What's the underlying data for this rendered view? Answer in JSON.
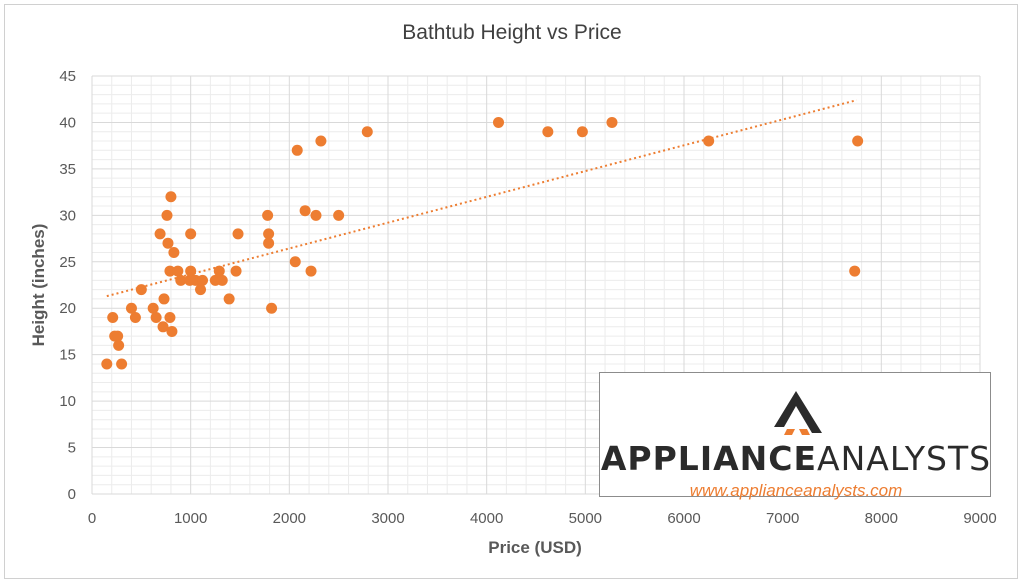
{
  "chart_data": {
    "type": "scatter",
    "title": "Bathtub Height vs Price",
    "xlabel": "Price (USD)",
    "ylabel": "Height (inches)",
    "xlim": [
      0,
      9000
    ],
    "ylim": [
      0,
      45
    ],
    "xticks": [
      0,
      1000,
      2000,
      3000,
      4000,
      5000,
      6000,
      7000,
      8000,
      9000
    ],
    "yticks": [
      0,
      5,
      10,
      15,
      20,
      25,
      30,
      35,
      40,
      45
    ],
    "grid": true,
    "marker_color": "#ed7d31",
    "trendline": {
      "type": "linear",
      "style": "dotted",
      "from": [
        150,
        21.3
      ],
      "to": [
        7750,
        42.4
      ]
    },
    "points": [
      [
        150,
        14
      ],
      [
        210,
        19
      ],
      [
        230,
        17
      ],
      [
        260,
        17
      ],
      [
        270,
        16
      ],
      [
        300,
        14
      ],
      [
        400,
        20
      ],
      [
        440,
        19
      ],
      [
        500,
        22
      ],
      [
        620,
        20
      ],
      [
        650,
        19
      ],
      [
        690,
        28
      ],
      [
        720,
        18
      ],
      [
        730,
        21
      ],
      [
        760,
        30
      ],
      [
        770,
        27
      ],
      [
        790,
        19
      ],
      [
        790,
        24
      ],
      [
        800,
        32
      ],
      [
        810,
        17.5
      ],
      [
        830,
        26
      ],
      [
        870,
        24
      ],
      [
        900,
        23
      ],
      [
        990,
        23
      ],
      [
        1000,
        24
      ],
      [
        1000,
        28
      ],
      [
        1050,
        23
      ],
      [
        1100,
        22
      ],
      [
        1120,
        23
      ],
      [
        1250,
        23
      ],
      [
        1290,
        24
      ],
      [
        1320,
        23
      ],
      [
        1390,
        21
      ],
      [
        1460,
        24
      ],
      [
        1480,
        28
      ],
      [
        1780,
        30
      ],
      [
        1790,
        28
      ],
      [
        1790,
        27
      ],
      [
        1820,
        20
      ],
      [
        2060,
        25
      ],
      [
        2080,
        37
      ],
      [
        2160,
        30.5
      ],
      [
        2220,
        24
      ],
      [
        2270,
        30
      ],
      [
        2320,
        38
      ],
      [
        2500,
        30
      ],
      [
        2790,
        39
      ],
      [
        4120,
        40
      ],
      [
        4620,
        39
      ],
      [
        4970,
        39
      ],
      [
        5270,
        40
      ],
      [
        6250,
        38
      ],
      [
        7730,
        24
      ],
      [
        7760,
        38
      ]
    ]
  },
  "logo": {
    "name_bold": "APPLIANCE",
    "name_light": "ANALYSTS",
    "url": "www.applianceanalysts.com",
    "mark_color": "#2b2b2b",
    "accent_color": "#ed7d31"
  }
}
